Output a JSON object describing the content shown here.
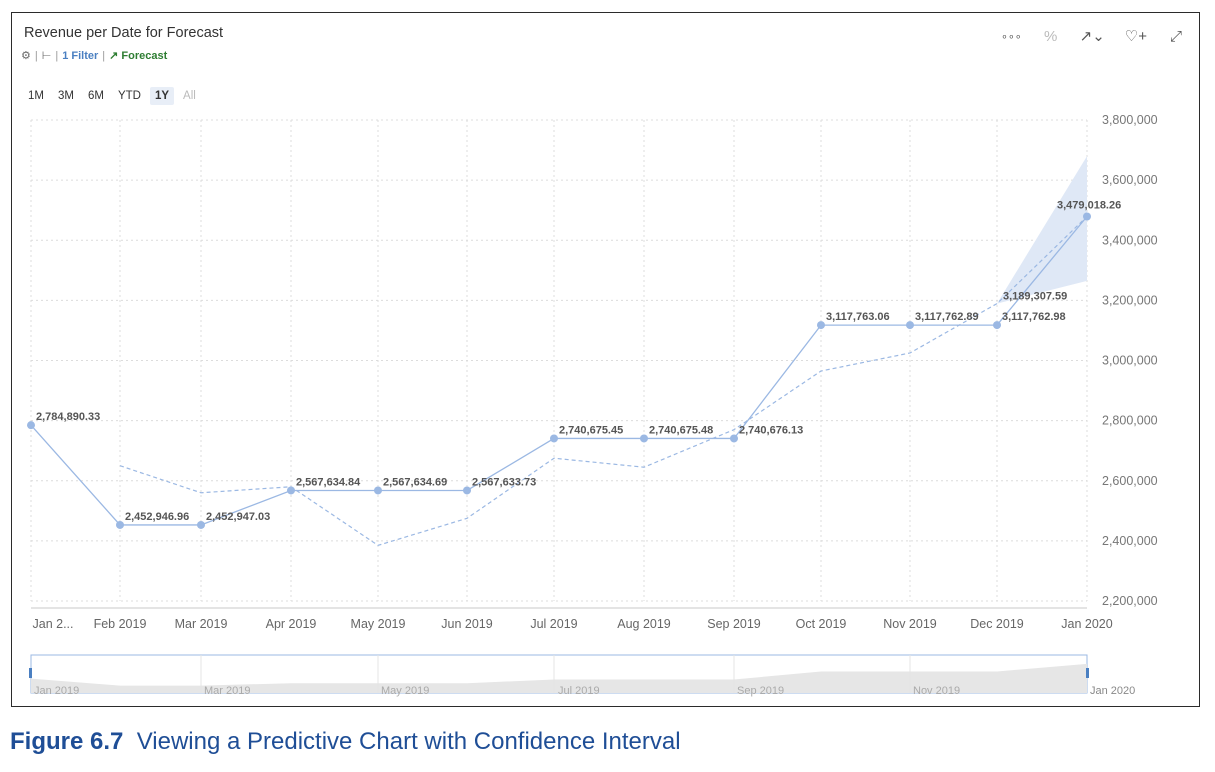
{
  "header": {
    "title": "Revenue per Date for Forecast",
    "filter_label": "1 Filter",
    "forecast_label": "Forecast"
  },
  "toolbar": {
    "more_label": "∘∘∘",
    "percent_label": "%",
    "trend_label": "↗⌄",
    "comment_label": "♡+",
    "fullscreen_label": "⤢"
  },
  "ranges": [
    "1M",
    "3M",
    "6M",
    "YTD",
    "1Y",
    "All"
  ],
  "caption": {
    "figure": "Figure 6.7",
    "text": "Viewing a Predictive Chart with Confidence Interval"
  },
  "chart_data": {
    "type": "line",
    "title": "Revenue per Date for Forecast",
    "categories": [
      "Jan 2...",
      "Feb 2019",
      "Mar 2019",
      "Apr 2019",
      "May 2019",
      "Jun 2019",
      "Jul 2019",
      "Aug 2019",
      "Sep 2019",
      "Oct 2019",
      "Nov 2019",
      "Dec 2019",
      "Jan 2020"
    ],
    "ylim": [
      2200000,
      3800000
    ],
    "yticks": [
      2200000,
      2400000,
      2600000,
      2800000,
      3000000,
      3200000,
      3400000,
      3600000,
      3800000
    ],
    "ytick_labels": [
      "2,200,000",
      "2,400,000",
      "2,600,000",
      "2,800,000",
      "3,000,000",
      "3,200,000",
      "3,400,000",
      "3,600,000",
      "3,800,000"
    ],
    "series": [
      {
        "values": [
          2784890.33,
          2452946.96,
          2452947.03,
          2567634.84,
          2567634.69,
          2567633.73,
          2740675.45,
          2740675.48,
          2740676.13,
          3117763.06,
          3117762.89,
          3117762.98,
          3479018.26
        ],
        "labels": [
          "2,784,890.33",
          "2,452,946.96",
          "2,452,947.03",
          "2,567,634.84",
          "2,567,634.69",
          "2,567,633.73",
          "2,740,675.45",
          "2,740,675.48",
          "2,740,676.13",
          "3,117,763.06",
          "3,117,762.89",
          "3,117,762.98",
          "3,479,018.26"
        ],
        "color": "#9bb8e3"
      }
    ],
    "forecast": {
      "values": [
        null,
        2650000,
        2560000,
        2580000,
        2385000,
        2475000,
        2675000,
        2645000,
        2770000,
        2965000,
        3025000,
        3189307.59,
        3479018.26
      ],
      "color": "#9bb8e3"
    },
    "forecast_point_label": "3,189,307.59",
    "confidence_interval": {
      "x_index": [
        11,
        12
      ],
      "upper": [
        3189307.59,
        3680000
      ],
      "lower": [
        3189307.59,
        3265000
      ],
      "color": "#dfe8f6"
    },
    "grid": true,
    "navigator": {
      "labels": [
        "Jan 2019",
        "Mar 2019",
        "May 2019",
        "Jul 2019",
        "Sep 2019",
        "Nov 2019",
        "Jan 2020"
      ]
    }
  }
}
